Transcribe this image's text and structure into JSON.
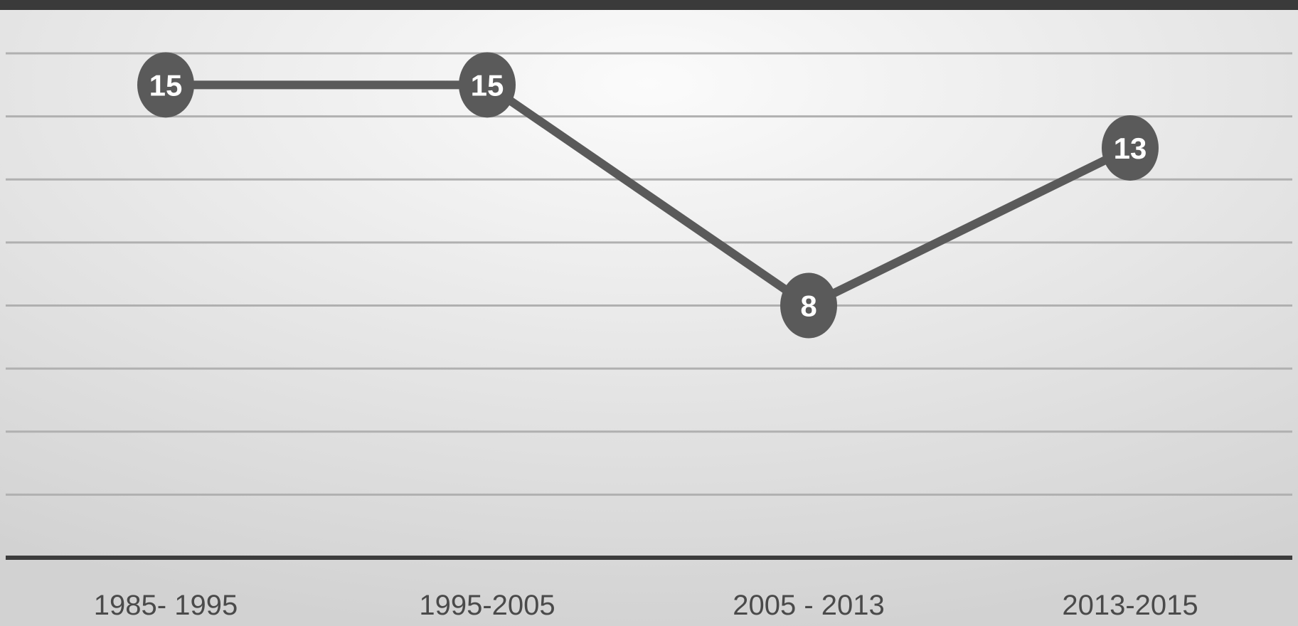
{
  "colors": {
    "frame": "#3a3a3a",
    "panel_light": "#fbfbfb",
    "panel_dark": "#d2d2d2",
    "grid": "#b0b0b0",
    "axis": "#3c3c3c",
    "series": "#5a5a5a",
    "marker_text": "#ffffff",
    "tick_text": "#4a4a4a"
  },
  "chart_data": {
    "type": "line",
    "categories": [
      "1985- 1995",
      "1995-2005",
      "2005 - 2013",
      "2013-2015"
    ],
    "series": [
      {
        "values": [
          15,
          15,
          8,
          13
        ]
      }
    ],
    "data_labels": [
      "15",
      "15",
      "8",
      "13"
    ],
    "title": "",
    "xlabel": "",
    "ylabel": "",
    "ylim": [
      0,
      16
    ],
    "grid": true,
    "gridline_step": 2,
    "legend": "none"
  }
}
